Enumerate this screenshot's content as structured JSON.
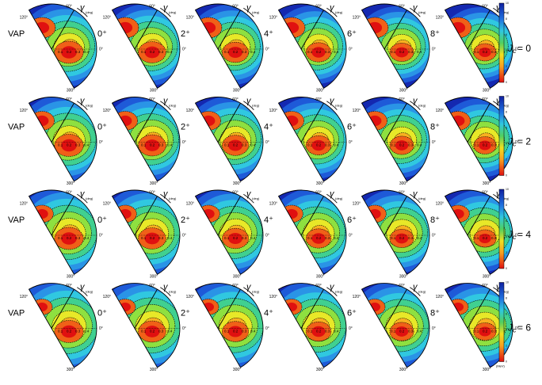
{
  "columns": [
    "VAP",
    "0⁺",
    "2⁺",
    "4⁺",
    "6⁺",
    "8⁺"
  ],
  "row_labels": [
    {
      "symbol": "J",
      "subscript": "c",
      "value": "= 0"
    },
    {
      "symbol": "J",
      "subscript": "c",
      "value": "= 2"
    },
    {
      "symbol": "J",
      "subscript": "c",
      "value": "= 4"
    },
    {
      "symbol": "J",
      "subscript": "c",
      "value": "= 6"
    }
  ],
  "polar_axis": {
    "angles": [
      "120°",
      "60°",
      "0°",
      "300°"
    ],
    "symbol": "γ",
    "unit": "(deg)",
    "radial_ticks": [
      "0.1",
      "0.2",
      "0.3",
      "0.4"
    ]
  },
  "colorbar": {
    "ticks": [
      "0",
      "2",
      "4",
      "6",
      "8",
      "10"
    ],
    "unit": "(MeV)"
  }
}
